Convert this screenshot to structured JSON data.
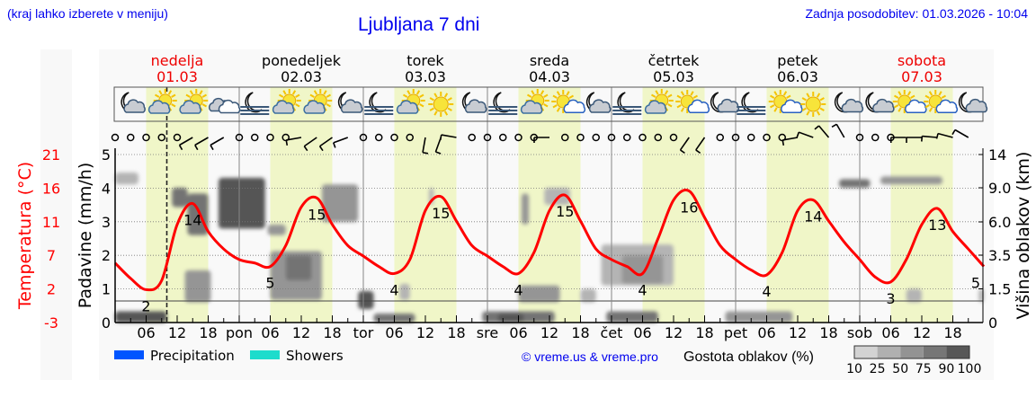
{
  "header": {
    "hint": "(kraj lahko izberete v meniju)",
    "title": "Ljubljana 7 dni",
    "updated": "Zadnja posodobitev: 01.03.2026 - 10:04"
  },
  "days": [
    {
      "name": "nedelja",
      "date": "01.03",
      "abbr": "",
      "weekend": true
    },
    {
      "name": "ponedeljek",
      "date": "02.03",
      "abbr": "pon",
      "weekend": false
    },
    {
      "name": "torek",
      "date": "03.03",
      "abbr": "tor",
      "weekend": false
    },
    {
      "name": "sreda",
      "date": "04.03",
      "abbr": "sre",
      "weekend": false
    },
    {
      "name": "četrtek",
      "date": "05.03",
      "abbr": "čet",
      "weekend": false
    },
    {
      "name": "petek",
      "date": "06.03",
      "abbr": "pet",
      "weekend": false
    },
    {
      "name": "sobota",
      "date": "07.03",
      "abbr": "sob",
      "weekend": true
    }
  ],
  "hour_ticks": [
    "06",
    "12",
    "18"
  ],
  "colors": {
    "weekend": "#ee0000",
    "weekday": "#000000",
    "temperature": "#ff0000",
    "daylight": "#f0f6c8",
    "link": "#0000ee",
    "precipitation": "#0055ff",
    "showers": "#1ddccc"
  },
  "weather_icons": [
    "moon-cloud",
    "sun-cloud",
    "sun-cloud",
    "cloudy",
    "moon-fog",
    "sun-cloud",
    "sun-cloud",
    "moon-cloud",
    "moon-fog",
    "sun-cloud",
    "sun",
    "moon-cloud",
    "moon-fog",
    "sun-cloud",
    "sun-small-cloud",
    "moon-cloud",
    "moon-fog",
    "sun-cloud",
    "sun-small-cloud",
    "moon-small-cloud",
    "moon-fog",
    "sun-small-cloud",
    "sun",
    "moon-small-cloud",
    "moon-small-cloud",
    "sun-small-cloud",
    "sun-small-cloud",
    "moon-small-cloud"
  ],
  "wind": [
    "calm",
    "calm",
    "calm",
    "calm",
    "calm",
    {
      "dir": 240
    },
    {
      "dir": 240
    },
    {
      "dir": 240
    },
    "calm",
    "calm",
    "calm",
    "calm",
    {
      "dir": 260
    },
    {
      "dir": 235
    },
    {
      "dir": 235
    },
    {
      "dir": 250
    },
    "calm",
    "calm",
    "calm",
    "calm",
    {
      "dir": 190
    },
    {
      "dir": 200
    },
    {
      "dir": 280
    },
    "calm",
    "calm",
    "calm",
    "calm",
    "calm",
    {
      "dir": 270
    },
    "calm",
    "calm",
    "calm",
    "calm",
    "calm",
    "calm",
    "calm",
    "calm",
    {
      "dir": 215
    },
    {
      "dir": 215
    },
    "calm",
    "calm",
    "calm",
    "calm",
    "calm",
    {
      "dir": 260
    },
    {
      "dir": 290
    },
    {
      "dir": 320
    },
    {
      "dir": 330
    },
    "calm",
    "calm",
    "calm",
    {
      "dir": 270
    },
    {
      "dir": 270
    },
    {
      "dir": 275
    },
    {
      "dir": 285
    },
    {
      "dir": 300
    }
  ],
  "chart_data": {
    "type": "line",
    "current_time_hour": 10,
    "x_unit": "hours from 01.03 00:00",
    "axes": {
      "temperature": {
        "label": "Temperatura (°C)",
        "ticks": [
          "21",
          "16",
          "11",
          "7",
          "2",
          "-3"
        ],
        "range": [
          -3,
          21
        ]
      },
      "precipitation": {
        "label": "Padavine (mm/h)",
        "ticks": [
          "0",
          "1",
          "2",
          "3",
          "4",
          "5"
        ],
        "range": [
          0,
          5.2
        ]
      },
      "cloud_height": {
        "label": "Višina oblakov (km)",
        "ticks": [
          {
            "km": 0,
            "label": "0"
          },
          {
            "km": 1.5,
            "label": "1.5"
          },
          {
            "km": 3.5,
            "label": "3.5"
          },
          {
            "km": 6,
            "label": "6.0"
          },
          {
            "km": 9,
            "label": "9.0"
          },
          {
            "km": 14,
            "label": "14"
          }
        ]
      }
    },
    "temperature_step_hours": 3,
    "temperature": [
      5.5,
      3.3,
      1.7,
      3,
      11,
      14,
      10,
      7.5,
      6,
      5.5,
      5,
      8,
      13.5,
      14.8,
      11,
      8,
      6.5,
      5,
      4,
      6,
      13,
      15,
      11.5,
      8,
      6.5,
      5,
      4,
      7,
      13,
      15.2,
      11.5,
      7.5,
      6,
      5,
      4,
      9,
      14.5,
      15.8,
      12,
      8,
      6,
      4.5,
      3.8,
      7,
      13,
      14.5,
      11.5,
      8.5,
      6,
      3.5,
      2.8,
      6,
      11,
      13.3,
      10,
      7.5,
      5
    ],
    "temperature_labels": [
      {
        "hour": 6,
        "value": "2"
      },
      {
        "hour": 15,
        "value": "14"
      },
      {
        "hour": 30,
        "value": "5"
      },
      {
        "hour": 39,
        "value": "15"
      },
      {
        "hour": 54,
        "value": "4"
      },
      {
        "hour": 63,
        "value": "15"
      },
      {
        "hour": 78,
        "value": "4"
      },
      {
        "hour": 87,
        "value": "15"
      },
      {
        "hour": 102,
        "value": "4"
      },
      {
        "hour": 111,
        "value": "16"
      },
      {
        "hour": 126,
        "value": "4"
      },
      {
        "hour": 135,
        "value": "14"
      },
      {
        "hour": 150,
        "value": "3"
      },
      {
        "hour": 159,
        "value": "13"
      },
      {
        "hour": 168,
        "value": "5"
      }
    ],
    "precipitation": [],
    "cloud_density_levels": [
      10,
      25,
      50,
      75,
      90,
      100
    ],
    "clouds": [
      {
        "h": [
          0,
          4.5
        ],
        "km": [
          9.5,
          11.3
        ],
        "d": 25
      },
      {
        "h": [
          11,
          14
        ],
        "km": [
          7.3,
          9
        ],
        "d": 75
      },
      {
        "h": [
          14,
          18
        ],
        "km": [
          5,
          8.5
        ],
        "d": 75
      },
      {
        "h": [
          20,
          29
        ],
        "km": [
          5.5,
          10.5
        ],
        "d": 90
      },
      {
        "h": [
          29.5,
          33
        ],
        "km": [
          5,
          5.8
        ],
        "d": 50
      },
      {
        "h": [
          30,
          40
        ],
        "km": [
          1,
          3.8
        ],
        "d": 50
      },
      {
        "h": [
          33,
          38
        ],
        "km": [
          2,
          3.5
        ],
        "d": 75
      },
      {
        "h": [
          40,
          47
        ],
        "km": [
          6,
          9.5
        ],
        "d": 50
      },
      {
        "h": [
          13.5,
          18.5
        ],
        "km": [
          0.9,
          2.6
        ],
        "d": 50
      },
      {
        "h": [
          0,
          10
        ],
        "km": [
          0,
          0.5
        ],
        "d": 90
      },
      {
        "h": [
          47,
          50
        ],
        "km": [
          0.6,
          1.4
        ],
        "d": 90
      },
      {
        "h": [
          50,
          58
        ],
        "km": [
          0,
          0.4
        ],
        "d": 75
      },
      {
        "h": [
          71,
          85
        ],
        "km": [
          0,
          0.5
        ],
        "d": 75
      },
      {
        "h": [
          74,
          79
        ],
        "km": [
          0,
          0.4
        ],
        "d": 90
      },
      {
        "h": [
          94,
          108
        ],
        "km": [
          1.7,
          4.3
        ],
        "d": 25
      },
      {
        "h": [
          98,
          106
        ],
        "km": [
          1.8,
          3.5
        ],
        "d": 50
      },
      {
        "h": [
          95,
          105
        ],
        "km": [
          0,
          0.5
        ],
        "d": 75
      },
      {
        "h": [
          118,
          131
        ],
        "km": [
          0,
          0.5
        ],
        "d": 50
      },
      {
        "h": [
          140,
          146
        ],
        "km": [
          9,
          10.3
        ],
        "d": 75
      },
      {
        "h": [
          148,
          160
        ],
        "km": [
          9.5,
          10.7
        ],
        "d": 50
      },
      {
        "h": [
          83,
          88
        ],
        "km": [
          7.5,
          9
        ],
        "d": 25
      },
      {
        "h": [
          78.6,
          80
        ],
        "km": [
          5.8,
          8.5
        ],
        "d": 50
      },
      {
        "h": [
          60.7,
          61.6
        ],
        "km": [
          7.5,
          9
        ],
        "d": 25
      },
      {
        "h": [
          55,
          57
        ],
        "km": [
          1,
          1.8
        ],
        "d": 25
      },
      {
        "h": [
          78,
          86
        ],
        "km": [
          0.9,
          1.7
        ],
        "d": 50
      },
      {
        "h": [
          90,
          93
        ],
        "km": [
          0.9,
          1.5
        ],
        "d": 25
      },
      {
        "h": [
          153,
          156
        ],
        "km": [
          0.9,
          1.5
        ],
        "d": 25
      },
      {
        "h": [
          167,
          168
        ],
        "km": [
          0.9,
          1.5
        ],
        "d": 25
      }
    ]
  },
  "legend": {
    "precipitation": "Precipitation",
    "showers": "Showers",
    "credit": "© vreme.us & vreme.pro",
    "cloud_density_title": "Gostota oblakov (%)",
    "cloud_density_labels": [
      "10",
      "25",
      "50",
      "75",
      "90",
      "100"
    ]
  }
}
